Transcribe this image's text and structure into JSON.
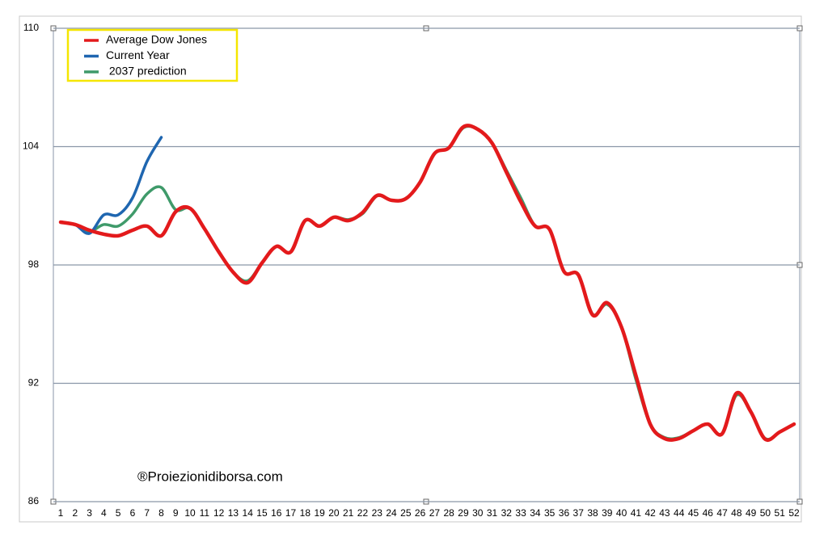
{
  "chart_data": {
    "type": "line",
    "watermark": "®Proiezionidiborsa.com",
    "categories": [
      1,
      2,
      3,
      4,
      5,
      6,
      7,
      8,
      9,
      10,
      11,
      12,
      13,
      14,
      15,
      16,
      17,
      18,
      19,
      20,
      21,
      22,
      23,
      24,
      25,
      26,
      27,
      28,
      29,
      30,
      31,
      32,
      33,
      34,
      35,
      36,
      37,
      38,
      39,
      40,
      41,
      42,
      43,
      44,
      45,
      46,
      47,
      48,
      49,
      50,
      51,
      52
    ],
    "ylim": [
      86,
      110
    ],
    "yticks": [
      86,
      92,
      98,
      104,
      110
    ],
    "grid": true,
    "legend": "upper left",
    "series": [
      {
        "name": " 2037 prediction",
        "color": "#3f9a6a",
        "values": [
          100.17,
          100.05,
          99.7,
          100.05,
          99.97,
          100.58,
          101.6,
          101.93,
          100.8,
          100.87,
          99.84,
          98.66,
          97.63,
          97.2,
          98.1,
          98.94,
          98.66,
          100.25,
          99.97,
          100.42,
          100.3,
          100.6,
          101.5,
          101.28,
          101.36,
          102.2,
          103.65,
          103.94,
          104.95,
          104.88,
          104.18,
          102.8,
          101.4,
          99.97,
          99.8,
          97.67,
          97.5,
          95.5,
          96.0,
          94.85,
          92.2,
          89.93,
          89.25,
          89.25,
          89.6,
          89.93,
          89.44,
          91.4,
          90.55,
          89.2,
          89.53,
          89.93
        ]
      },
      {
        "name": "Current Year",
        "color": "#1f66b0",
        "values": [
          100.17,
          100.05,
          99.6,
          100.54,
          100.54,
          101.4,
          103.24,
          104.47,
          null,
          null,
          null,
          null,
          null,
          null,
          null,
          null,
          null,
          null,
          null,
          null,
          null,
          null,
          null,
          null,
          null,
          null,
          null,
          null,
          null,
          null,
          null,
          null,
          null,
          null,
          null,
          null,
          null,
          null,
          null,
          null,
          null,
          null,
          null,
          null,
          null,
          null,
          null,
          null,
          null,
          null,
          null,
          null
        ]
      },
      {
        "name": "Average Dow Jones",
        "color": "#e31a1c",
        "values": [
          100.17,
          100.05,
          99.76,
          99.56,
          99.48,
          99.76,
          99.97,
          99.48,
          100.7,
          100.87,
          99.84,
          98.66,
          97.63,
          97.1,
          98.1,
          98.94,
          98.66,
          100.25,
          99.97,
          100.42,
          100.25,
          100.66,
          101.52,
          101.28,
          101.36,
          102.2,
          103.65,
          103.94,
          105.0,
          104.88,
          104.18,
          102.7,
          101.2,
          99.97,
          99.8,
          97.67,
          97.5,
          95.46,
          96.08,
          94.85,
          92.4,
          89.93,
          89.2,
          89.2,
          89.6,
          89.93,
          89.44,
          91.5,
          90.55,
          89.16,
          89.53,
          89.93
        ]
      }
    ]
  }
}
